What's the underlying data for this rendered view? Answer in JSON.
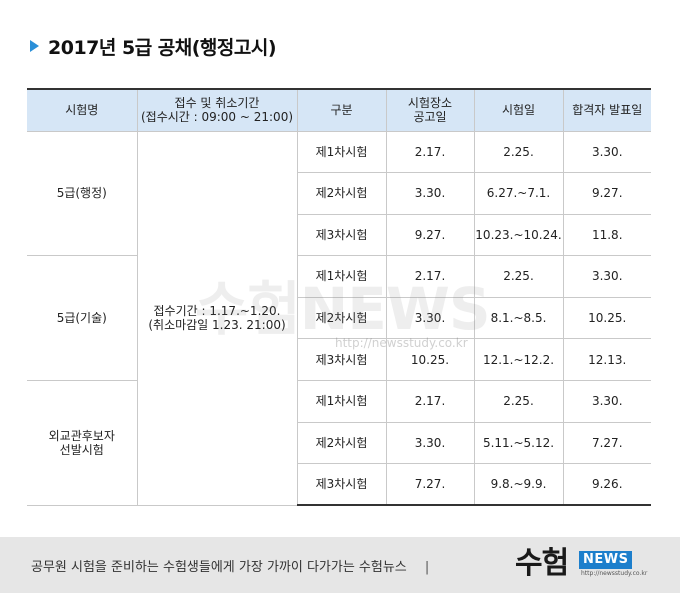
{
  "title": "2017년 5급 공채(행정고시)",
  "colors": {
    "accent": "#2a8fd8",
    "header_bg": "#d6e6f6",
    "footer_bg": "#e6e6e6",
    "logo_blue": "#1d7fcc"
  },
  "watermark": {
    "logo": "수험NEWS",
    "url": "http://newsstudy.co.kr"
  },
  "table": {
    "headers": {
      "exam_name": "시험명",
      "period_line1": "접수 및 취소기간",
      "period_line2": "(접수시간 : 09:00 ~ 21:00)",
      "category": "구분",
      "venue_line1": "시험장소",
      "venue_line2": "공고일",
      "exam_date": "시험일",
      "announce": "합격자 발표일"
    },
    "period": {
      "line1": "접수기간 : 1.17.~1.20.",
      "line2": "(취소마감일 1.23. 21:00)"
    },
    "groups": [
      {
        "name_line1": "5급(행정)",
        "name_line2": "",
        "rows": [
          {
            "stage": "제1차시험",
            "venue": "2.17.",
            "exam": "2.25.",
            "announce": "3.30."
          },
          {
            "stage": "제2차시험",
            "venue": "3.30.",
            "exam": "6.27.~7.1.",
            "announce": "9.27."
          },
          {
            "stage": "제3차시험",
            "venue": "9.27.",
            "exam": "10.23.~10.24.",
            "announce": "11.8."
          }
        ]
      },
      {
        "name_line1": "5급(기술)",
        "name_line2": "",
        "rows": [
          {
            "stage": "제1차시험",
            "venue": "2.17.",
            "exam": "2.25.",
            "announce": "3.30."
          },
          {
            "stage": "제2차시험",
            "venue": "3.30.",
            "exam": "8.1.~8.5.",
            "announce": "10.25."
          },
          {
            "stage": "제3차시험",
            "venue": "10.25.",
            "exam": "12.1.~12.2.",
            "announce": "12.13."
          }
        ]
      },
      {
        "name_line1": "외교관후보자",
        "name_line2": "선발시험",
        "rows": [
          {
            "stage": "제1차시험",
            "venue": "2.17.",
            "exam": "2.25.",
            "announce": "3.30."
          },
          {
            "stage": "제2차시험",
            "venue": "3.30.",
            "exam": "5.11.~5.12.",
            "announce": "7.27."
          },
          {
            "stage": "제3차시험",
            "venue": "7.27.",
            "exam": "9.8.~9.9.",
            "announce": "9.26."
          }
        ]
      }
    ]
  },
  "footer": {
    "tagline": "공무원 시험을 준비하는 수험생들에게 가장 가까이 다가가는 수험뉴스",
    "separator": "|",
    "logo_main": "수험",
    "logo_news": "NEWS",
    "logo_url": "http://newsstudy.co.kr"
  }
}
